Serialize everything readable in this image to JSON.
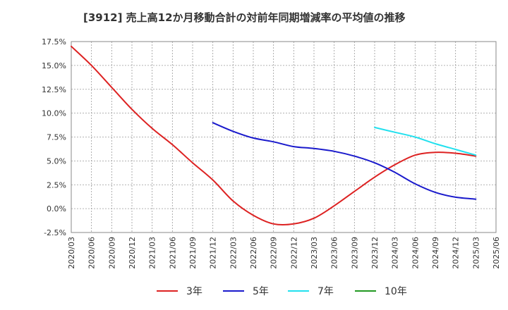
{
  "chart_data": {
    "type": "line",
    "title": "[3912]  売上高12か月移動合計の対前年同期増減率の平均値の推移",
    "xlabel": "",
    "ylabel": "",
    "ylim": [
      -2.5,
      17.5
    ],
    "grid": true,
    "legend_placement": "bottom",
    "yticks": [
      "17.5%",
      "15.0%",
      "12.5%",
      "10.0%",
      "7.5%",
      "5.0%",
      "2.5%",
      "0.0%",
      "-2.5%"
    ],
    "ytick_values": [
      17.5,
      15.0,
      12.5,
      10.0,
      7.5,
      5.0,
      2.5,
      0.0,
      -2.5
    ],
    "xticks": [
      "2020/03",
      "2020/06",
      "2020/09",
      "2020/12",
      "2021/03",
      "2021/06",
      "2021/09",
      "2021/12",
      "2022/03",
      "2022/06",
      "2022/09",
      "2022/12",
      "2023/03",
      "2023/06",
      "2023/09",
      "2023/12",
      "2024/03",
      "2024/06",
      "2024/09",
      "2024/12",
      "2025/03",
      "2025/06"
    ],
    "series": [
      {
        "name": "3年",
        "color": "#dd2222",
        "points": [
          [
            "2020/03",
            17.0
          ],
          [
            "2020/06",
            15.0
          ],
          [
            "2020/09",
            12.7
          ],
          [
            "2020/12",
            10.4
          ],
          [
            "2021/03",
            8.4
          ],
          [
            "2021/06",
            6.7
          ],
          [
            "2021/09",
            4.8
          ],
          [
            "2021/12",
            3.0
          ],
          [
            "2022/03",
            0.8
          ],
          [
            "2022/06",
            -0.7
          ],
          [
            "2022/09",
            -1.6
          ],
          [
            "2022/12",
            -1.6
          ],
          [
            "2023/03",
            -1.0
          ],
          [
            "2023/06",
            0.3
          ],
          [
            "2023/09",
            1.8
          ],
          [
            "2023/12",
            3.3
          ],
          [
            "2024/03",
            4.6
          ],
          [
            "2024/06",
            5.6
          ],
          [
            "2024/09",
            5.9
          ],
          [
            "2024/12",
            5.8
          ],
          [
            "2025/03",
            5.5
          ]
        ]
      },
      {
        "name": "5年",
        "color": "#1a1acc",
        "points": [
          [
            "2021/12",
            9.0
          ],
          [
            "2022/03",
            8.1
          ],
          [
            "2022/06",
            7.4
          ],
          [
            "2022/09",
            7.0
          ],
          [
            "2022/12",
            6.5
          ],
          [
            "2023/03",
            6.3
          ],
          [
            "2023/06",
            6.0
          ],
          [
            "2023/09",
            5.5
          ],
          [
            "2023/12",
            4.8
          ],
          [
            "2024/03",
            3.8
          ],
          [
            "2024/06",
            2.6
          ],
          [
            "2024/09",
            1.7
          ],
          [
            "2024/12",
            1.2
          ],
          [
            "2025/03",
            1.0
          ]
        ]
      },
      {
        "name": "7年",
        "color": "#22e0ee",
        "points": [
          [
            "2023/12",
            8.5
          ],
          [
            "2024/03",
            8.0
          ],
          [
            "2024/06",
            7.5
          ],
          [
            "2024/09",
            6.8
          ],
          [
            "2024/12",
            6.2
          ],
          [
            "2025/03",
            5.6
          ]
        ]
      },
      {
        "name": "10年",
        "color": "#229922",
        "points": []
      }
    ]
  }
}
